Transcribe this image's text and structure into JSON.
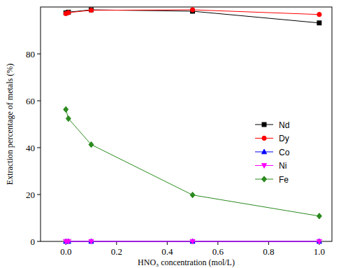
{
  "chart_data": {
    "type": "line",
    "x_label": "HNO₃ concentration (mol/L)",
    "y_label": "Extraction percentage of metals (%)",
    "x": [
      0,
      0.01,
      0.1,
      0.5,
      1.0
    ],
    "series": [
      {
        "name": "Nd",
        "color": "#000000",
        "marker": "square",
        "values": [
          97.5,
          97.8,
          98.8,
          98.2,
          93.2
        ]
      },
      {
        "name": "Dy",
        "color": "#ff0000",
        "marker": "circle",
        "values": [
          97.2,
          97.6,
          98.6,
          98.8,
          96.8
        ]
      },
      {
        "name": "Co",
        "color": "#0000ff",
        "marker": "triangle-up",
        "values": [
          0,
          0,
          0,
          0,
          0
        ]
      },
      {
        "name": "Ni",
        "color": "#ff00ff",
        "marker": "triangle-down",
        "values": [
          0,
          0,
          0,
          0,
          0
        ]
      },
      {
        "name": "Fe",
        "color": "#2b8a1f",
        "marker": "diamond",
        "values": [
          56.3,
          52.4,
          41.3,
          19.8,
          10.8
        ]
      }
    ],
    "xlim": [
      -0.1,
      1.05
    ],
    "xticks": [
      {
        "value": 0,
        "label": "0.0"
      },
      {
        "value": 0.2,
        "label": "0.2"
      },
      {
        "value": 0.4,
        "label": "0.4"
      },
      {
        "value": 0.6,
        "label": "0.6"
      },
      {
        "value": 0.8,
        "label": "0.8"
      },
      {
        "value": 1.0,
        "label": "1.0"
      }
    ],
    "ylim": [
      0,
      100
    ],
    "yticks": [
      0,
      20,
      40,
      60,
      80
    ],
    "grid": false,
    "legend": "right"
  }
}
